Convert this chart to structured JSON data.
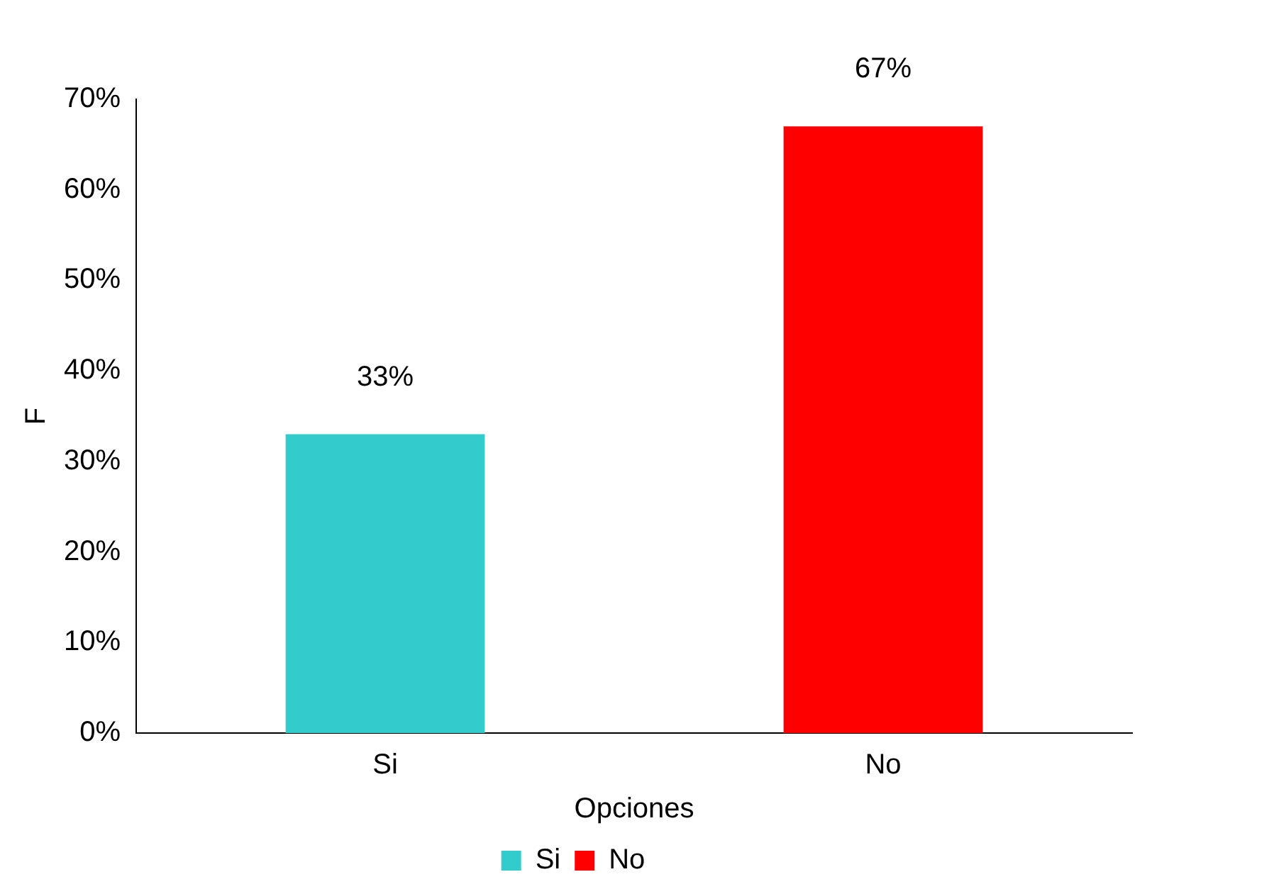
{
  "chart_data": {
    "type": "bar",
    "xlabel": "Opciones",
    "ylabel": "F",
    "categories": [
      "Si",
      "No"
    ],
    "series": [
      {
        "name": "Si",
        "color": "#33cccc",
        "values": [
          33,
          null
        ],
        "value_labels": [
          "33%",
          null
        ]
      },
      {
        "name": "No",
        "color": "#ff0000",
        "values": [
          null,
          67
        ],
        "value_labels": [
          null,
          "67%"
        ]
      }
    ],
    "ylim": [
      0,
      70
    ],
    "yticks": [
      {
        "value": 0,
        "label": "0%"
      },
      {
        "value": 10,
        "label": "10%"
      },
      {
        "value": 20,
        "label": "20%"
      },
      {
        "value": 30,
        "label": "30%"
      },
      {
        "value": 40,
        "label": "40%"
      },
      {
        "value": 50,
        "label": "50%"
      },
      {
        "value": 60,
        "label": "60%"
      },
      {
        "value": 70,
        "label": "70%"
      }
    ],
    "legend": "bottom",
    "grid": false
  }
}
